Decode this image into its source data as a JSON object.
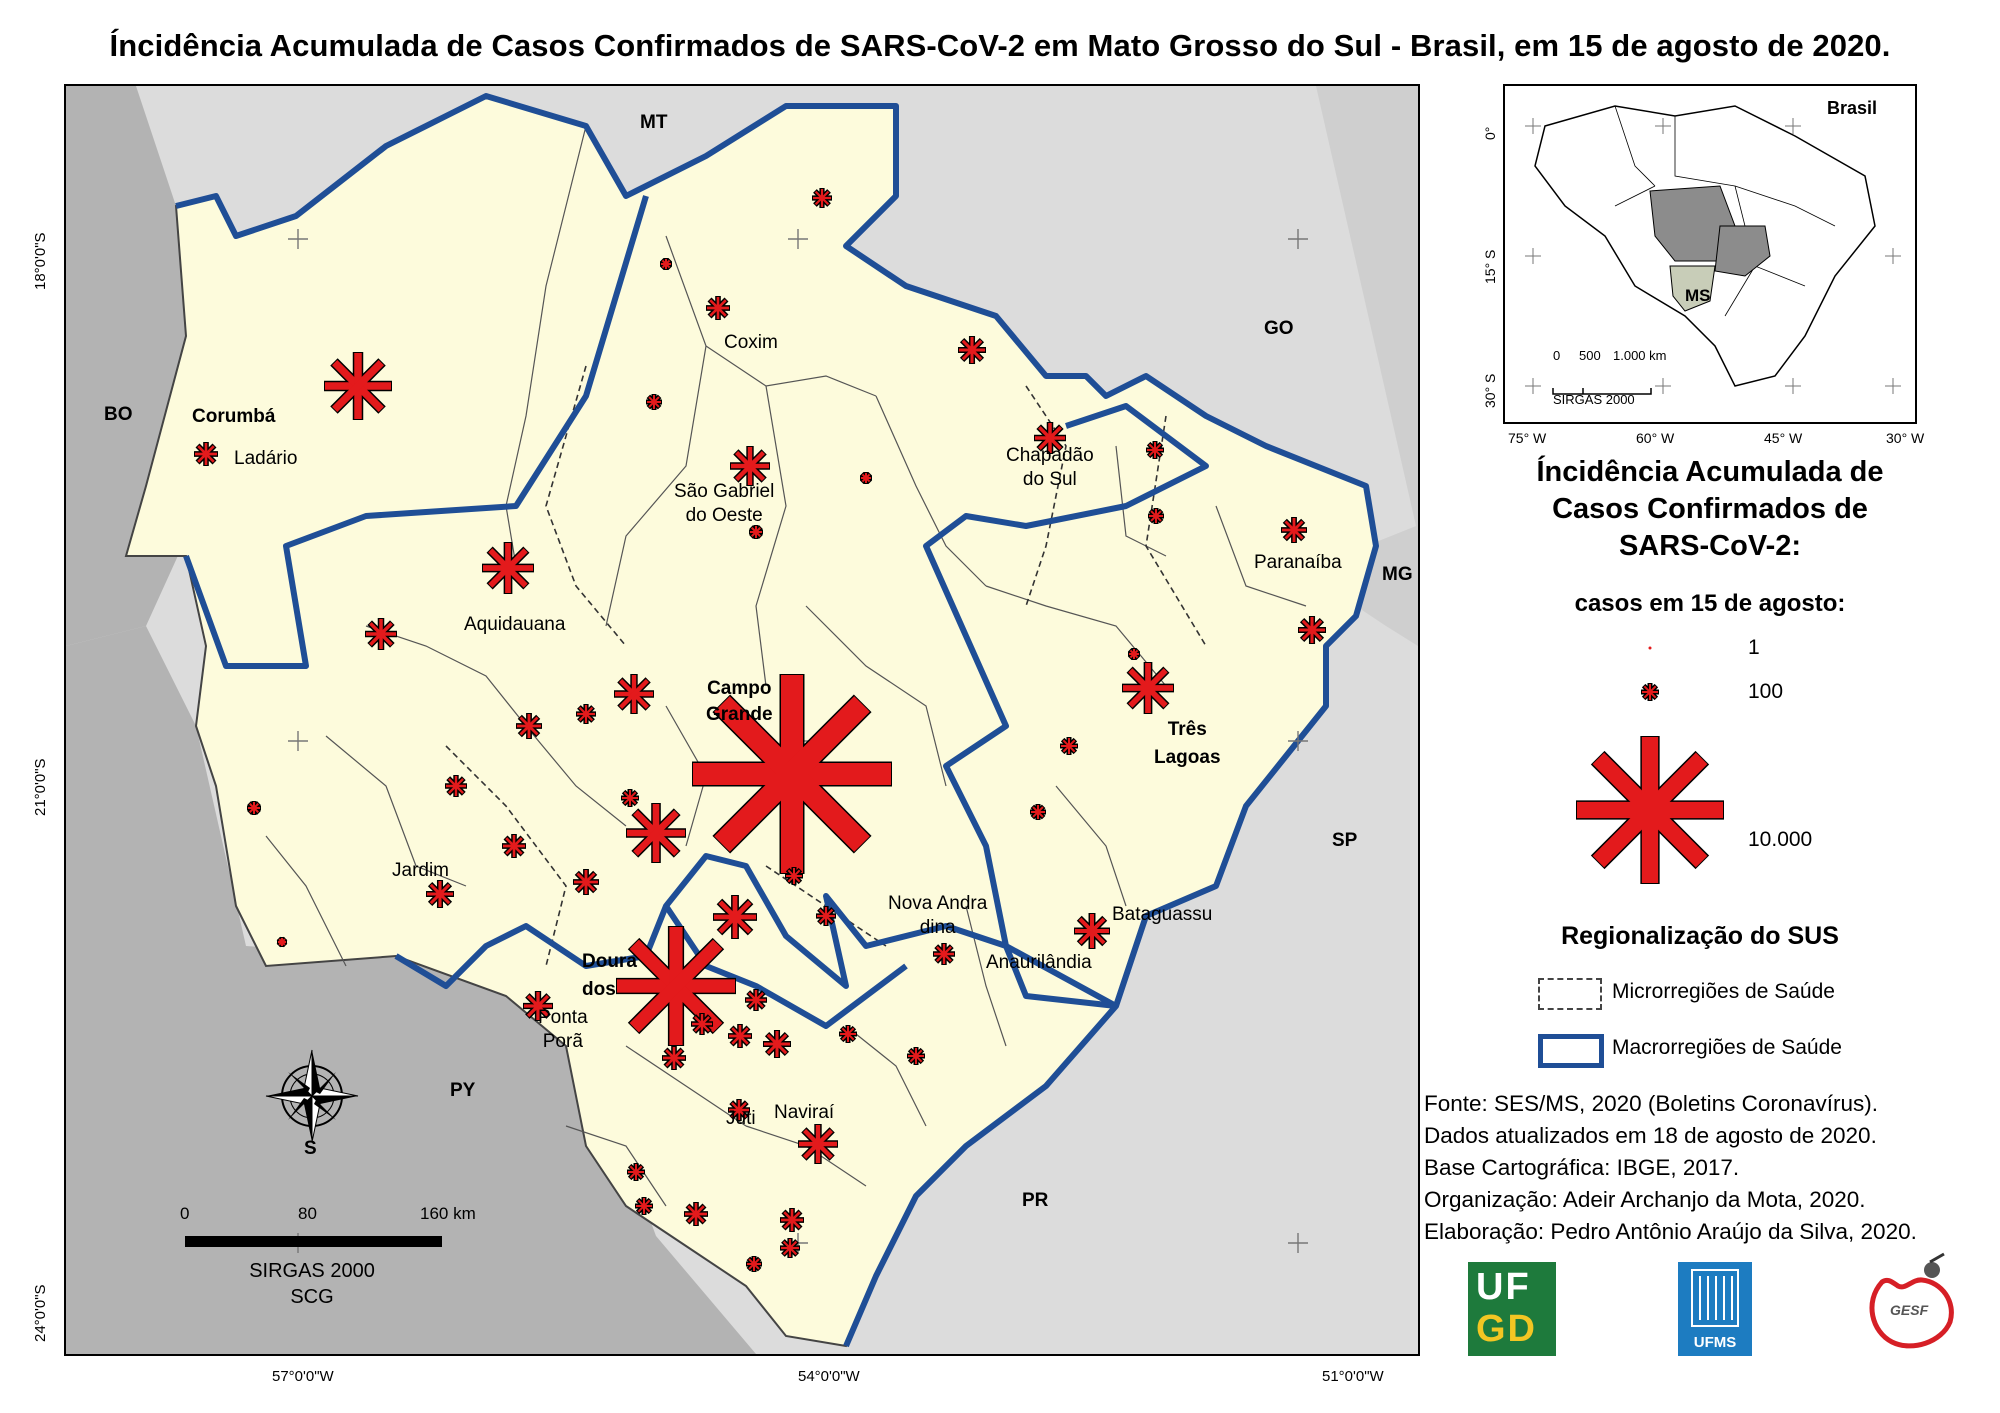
{
  "title": "Íncidência Acumulada de Casos Confirmados de SARS-CoV-2 em Mato Grosso do Sul - Brasil, em 15 de agosto de 2020.",
  "colors": {
    "ms_fill": "#fdfbdc",
    "neighbor_fill": "#dcdcdc",
    "outside_fill": "#b3b3b3",
    "macro_border": "#1f4e96",
    "symbol_red": "#e31a1c",
    "inset_highlight": "#8c8c8c"
  },
  "map": {
    "coords": {
      "lat_labels": [
        "18°0'0\"S",
        "21°0'0\"S",
        "24°0'0\"S"
      ],
      "lon_labels": [
        "57°0'0\"W",
        "54°0'0\"W",
        "51°0'0\"W"
      ]
    },
    "neighbors": [
      "MT",
      "GO",
      "MG",
      "SP",
      "PR",
      "PY",
      "BO"
    ],
    "place_labels": {
      "corumba": "Corumbá",
      "ladario": "Ladário",
      "coxim": "Coxim",
      "sao_gabriel": [
        "São Gabriel",
        "do Oeste"
      ],
      "chapadao": [
        "Chapadão",
        "do Sul"
      ],
      "paranaiba": "Paranaíba",
      "aquidauana": "Aquidauana",
      "campo_grande": [
        "Campo",
        "Grande"
      ],
      "tres_lagoas": [
        "Três",
        "Lagoas"
      ],
      "jardim": "Jardim",
      "nova_andradina": [
        "Nova Andra",
        "dina"
      ],
      "bataguassu": "Bataguassu",
      "anaurilandia": "Anaurilândia",
      "dourados": [
        "Doura",
        "dos"
      ],
      "ponta_pora": [
        "Ponta",
        "Porã"
      ],
      "juti": "Juti",
      "navirai": "Naviraí"
    },
    "compass_label": "S",
    "scale_bar": {
      "ticks": [
        "0",
        "80",
        "160 km"
      ],
      "datum": [
        "SIRGAS 2000",
        "SCG"
      ]
    }
  },
  "inset": {
    "label": "Brasil",
    "highlight_label": "MS",
    "lat_ticks": [
      "0°",
      "15° S",
      "30° S"
    ],
    "lon_ticks": [
      "75° W",
      "60° W",
      "45° W",
      "30° W"
    ],
    "scale": {
      "ticks": [
        "0",
        "500",
        "1.000 km"
      ],
      "datum": "SIRGAS 2000"
    }
  },
  "legend": {
    "title": [
      "Íncidência Acumulada de",
      "Casos Confirmados de",
      "SARS-CoV-2:"
    ],
    "subtitle": "casos em 15 de agosto:",
    "values": [
      "1",
      "100",
      "10.000"
    ]
  },
  "regionalization": {
    "title": "Regionalização do SUS",
    "items": [
      {
        "label": "Microrregiões de Saúde",
        "style": "dashed"
      },
      {
        "label": "Macrorregiões de Saúde",
        "style": "macro"
      }
    ]
  },
  "source_lines": [
    "Fonte: SES/MS, 2020 (Boletins Coronavírus).",
    "Dados atualizados em 18 de agosto de 2020.",
    "Base Cartográfica: IBGE, 2017.",
    "Organização: Adeir Archanjo da Mota, 2020.",
    "Elaboração: Pedro Antônio Araújo da Silva, 2020."
  ],
  "logos": {
    "ufgd": [
      "UF",
      "GD"
    ],
    "ufms": "UFMS",
    "gesf": "GESF"
  }
}
